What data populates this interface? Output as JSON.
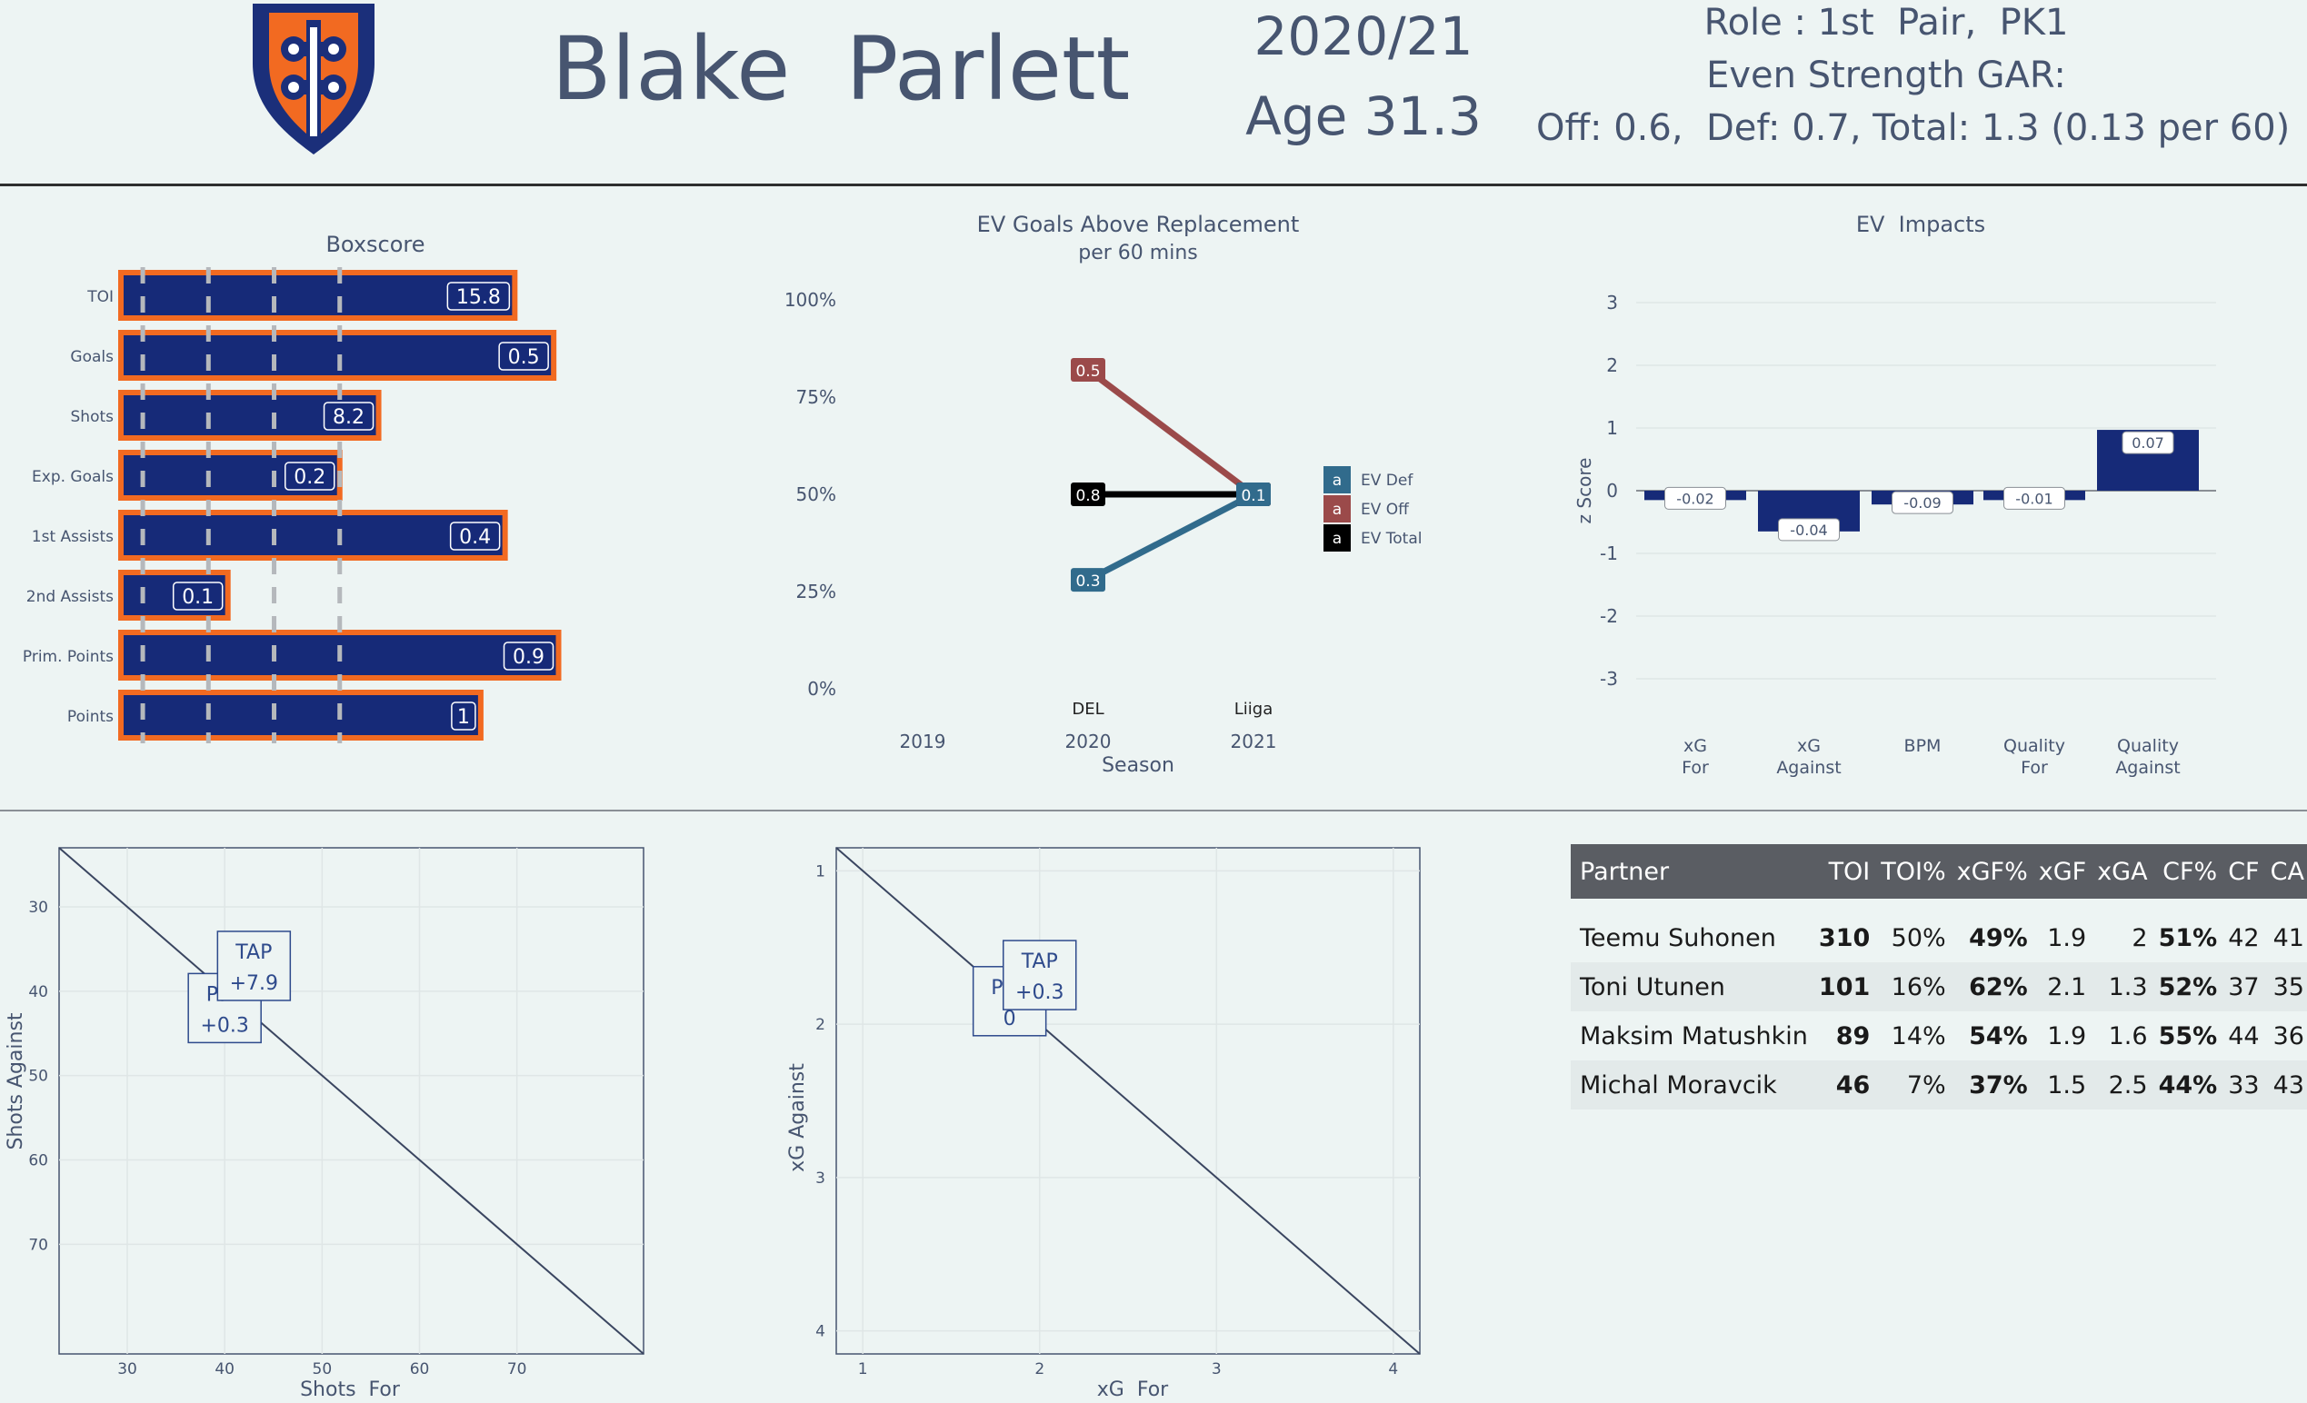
{
  "header": {
    "player_name": "Blake  Parlett",
    "season": "2020/21",
    "age": "Age 31.3",
    "role": "Role : 1st  Pair,  PK1",
    "gar_label": "Even Strength GAR:",
    "gar_values": "Off: 0.6,  Def: 0.7, Total: 1.3 (0.13 per 60)",
    "logo_colors": {
      "shield": "#1b2f7a",
      "accent": "#f26a21"
    }
  },
  "boxscore": {
    "title": "Boxscore",
    "colors": {
      "bar": "#162a78",
      "outline": "#f26a21",
      "gridline": "#b5b8bc"
    },
    "chart_data": {
      "type": "bar",
      "orientation": "horizontal",
      "categories": [
        "TOI",
        "Goals",
        "Shots",
        "Exp. Goals",
        "1st Assists",
        "2nd Assists",
        "Prim.  Points",
        "Points"
      ],
      "labels": [
        "15.8",
        "0.5",
        "8.2",
        "0.2",
        "0.4",
        "0.1",
        "0.9",
        "1"
      ],
      "percentile": [
        0.81,
        0.89,
        0.53,
        0.45,
        0.79,
        0.22,
        0.9,
        0.74
      ],
      "xlim": [
        0,
        1
      ],
      "grid": "dashed vertical at quartiles"
    }
  },
  "gar_chart": {
    "title": "EV Goals Above Replacement",
    "subtitle": "per 60 mins",
    "xlabel": "Season",
    "legend": [
      {
        "key": "a",
        "name": "EV Def",
        "color": "#316b8c"
      },
      {
        "key": "a",
        "name": "EV Off",
        "color": "#9b4a4a"
      },
      {
        "key": "a",
        "name": "EV Total",
        "color": "#000000"
      }
    ],
    "chart_data": {
      "type": "line",
      "x": [
        2019,
        2020,
        2021
      ],
      "x_ticks": [
        "2019",
        "2020",
        "2021"
      ],
      "league_labels": [
        {
          "x": 2020,
          "text": "DEL"
        },
        {
          "x": 2021,
          "text": "Liiga"
        }
      ],
      "y_ticks": [
        "100%",
        "75%",
        "50%",
        "25%",
        "0%"
      ],
      "ylim": [
        0,
        100
      ],
      "series": [
        {
          "name": "EV Off",
          "color": "#9b4a4a",
          "points": [
            {
              "x": 2020,
              "y": 82,
              "label": "0.5"
            },
            {
              "x": 2021,
              "y": 50,
              "label": "0.1"
            }
          ]
        },
        {
          "name": "EV Total",
          "color": "#000000",
          "points": [
            {
              "x": 2020,
              "y": 50,
              "label": "0.8"
            },
            {
              "x": 2021,
              "y": 50,
              "label": "0.1"
            }
          ]
        },
        {
          "name": "EV Def",
          "color": "#316b8c",
          "points": [
            {
              "x": 2020,
              "y": 28,
              "label": "0.3"
            },
            {
              "x": 2021,
              "y": 50,
              "label": "0.1"
            }
          ]
        }
      ]
    }
  },
  "impacts": {
    "title": "EV  Impacts",
    "ylabel": "z Score",
    "color": "#162a78",
    "chart_data": {
      "type": "bar",
      "categories": [
        "xG\nFor",
        "xG\nAgainst",
        "BPM",
        "Quality\nFor",
        "Quality\nAgainst"
      ],
      "values": [
        -0.15,
        -0.65,
        -0.22,
        -0.15,
        0.97
      ],
      "labels": [
        "-0.02",
        "-0.04",
        "-0.09",
        "-0.01",
        "0.07"
      ],
      "ylim": [
        -3.5,
        3.3
      ],
      "y_ticks": [
        3,
        2,
        1,
        0,
        -1,
        -2,
        -3
      ]
    }
  },
  "shots_scatter": {
    "xlabel": "Shots  For",
    "ylabel": "Shots Against",
    "chart_data": {
      "type": "scatter",
      "x_ticks": [
        30,
        40,
        50,
        60,
        70
      ],
      "y_ticks": [
        30,
        40,
        50,
        60,
        70
      ],
      "xlim": [
        23,
        83
      ],
      "ylim_reversed": [
        23,
        83
      ],
      "annotations": [
        {
          "line1": "Parl",
          "line2": "+0.3",
          "x": 40,
          "y": 42
        },
        {
          "line1": "TAP",
          "line2": "+7.9",
          "x": 43,
          "y": 37
        }
      ]
    }
  },
  "xg_scatter": {
    "xlabel": "xG  For",
    "ylabel": "xG Against",
    "chart_data": {
      "type": "scatter",
      "x_ticks": [
        1,
        2,
        3,
        4
      ],
      "y_ticks": [
        1,
        2,
        3,
        4
      ],
      "xlim": [
        0.85,
        4.15
      ],
      "ylim_reversed": [
        0.85,
        4.15
      ],
      "annotations": [
        {
          "line1": "Parl",
          "line2": "0",
          "x": 1.83,
          "y": 1.85
        },
        {
          "line1": "TAP",
          "line2": "+0.3",
          "x": 2.0,
          "y": 1.68
        }
      ]
    }
  },
  "partners_table": {
    "columns": [
      "Partner",
      "TOI",
      "TOI%",
      "xGF%",
      "xGF",
      "xGA",
      "CF%",
      "CF",
      "CA"
    ],
    "rows": [
      [
        "Teemu Suhonen",
        "310",
        "50%",
        "49%",
        "1.9",
        "2",
        "51%",
        "42",
        "41"
      ],
      [
        "Toni Utunen",
        "101",
        "16%",
        "62%",
        "2.1",
        "1.3",
        "52%",
        "37",
        "35"
      ],
      [
        "Maksim Matushkin",
        "89",
        "14%",
        "54%",
        "1.9",
        "1.6",
        "55%",
        "44",
        "36"
      ],
      [
        "Michal Moravcik",
        "46",
        "7%",
        "37%",
        "1.5",
        "2.5",
        "44%",
        "33",
        "43"
      ]
    ]
  }
}
